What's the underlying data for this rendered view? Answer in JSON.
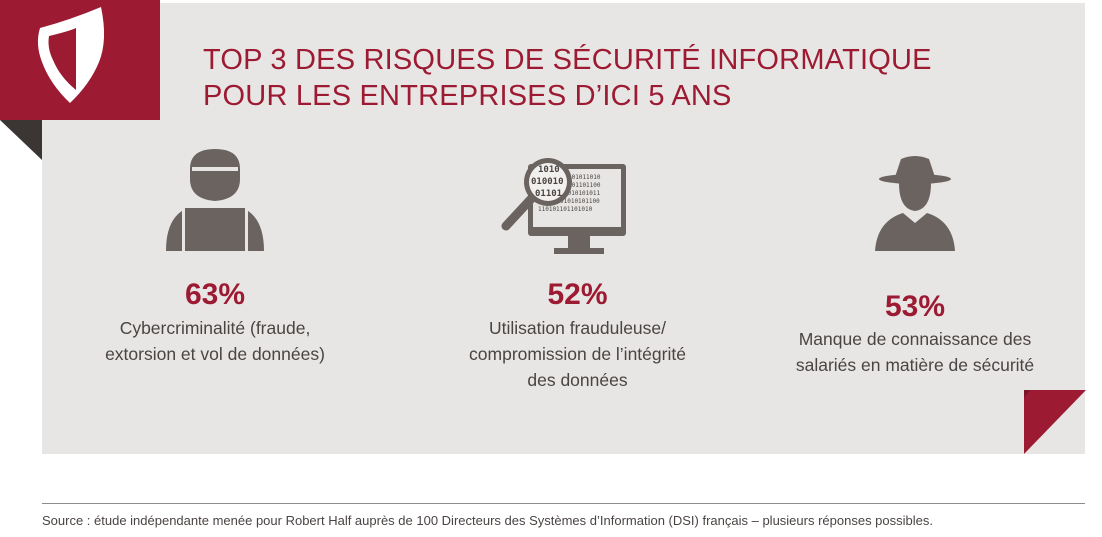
{
  "title": {
    "line1": "TOP 3 DES RISQUES DE SÉCURITÉ INFORMATIQUE",
    "line2": "POUR LES ENTREPRISES D’ICI 5 ANS"
  },
  "colors": {
    "accent": "#9c1b33",
    "panel": "#e8e6e4",
    "icon": "#6b6360",
    "text": "#4a4442"
  },
  "items": [
    {
      "icon": "hacker-laptop-icon",
      "percent": "63%",
      "label_lines": [
        "Cybercriminalité (fraude,",
        "extorsion et vol de données)"
      ]
    },
    {
      "icon": "magnifier-monitor-icon",
      "percent": "52%",
      "label_lines": [
        "Utilisation frauduleuse/",
        "compromission de l’intégrité",
        "des données"
      ]
    },
    {
      "icon": "spy-icon",
      "percent": "53%",
      "label_lines": [
        "Manque de connaissance des",
        "salariés en matière de sécurité"
      ]
    }
  ],
  "binary_text": {
    "lens": [
      "1010",
      "010010",
      "01101"
    ],
    "screen": [
      "101011010",
      "101101100",
      "0010101011",
      "01010101100",
      "110101101101010"
    ]
  },
  "source": "Source : étude indépendante menée pour Robert Half auprès de 100 Directeurs des Systèmes d’Information (DSI) français – plusieurs réponses possibles."
}
